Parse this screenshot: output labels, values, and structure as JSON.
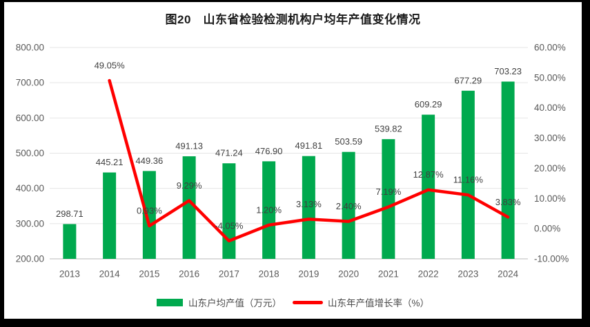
{
  "frame_color": "#000000",
  "colors": {
    "panel_background": "#FFFFFF",
    "bar": "#00A94E",
    "line": "#FF0000",
    "axis_text": "#595959",
    "data_label_text": "#3F3F3F",
    "gridline": "#E4E4E4",
    "axis_line": "#C8C8C8",
    "title_text": "#1A1A1A",
    "legend_text": "#4A4A4A"
  },
  "chart_data": {
    "type": "bar+line combo",
    "title": "图20　山东省检验检测机构户均年产值变化情况",
    "categories": [
      "2013",
      "2014",
      "2015",
      "2016",
      "2017",
      "2018",
      "2019",
      "2020",
      "2021",
      "2022",
      "2023",
      "2024"
    ],
    "series": [
      {
        "name": "山东户均产值（万元）",
        "type": "bar",
        "axis": "left",
        "values": [
          298.71,
          445.21,
          449.36,
          491.13,
          471.24,
          476.9,
          491.81,
          503.59,
          539.82,
          609.29,
          677.29,
          703.23
        ],
        "labels": [
          "298.71",
          "445.21",
          "449.36",
          "491.13",
          "471.24",
          "476.90",
          "491.81",
          "503.59",
          "539.82",
          "609.29",
          "677.29",
          "703.23"
        ]
      },
      {
        "name": "山东年产值增长率（%）",
        "type": "line",
        "axis": "right",
        "values": [
          null,
          49.05,
          0.93,
          9.29,
          -4.05,
          1.2,
          3.13,
          2.4,
          7.19,
          12.87,
          11.16,
          3.83
        ],
        "labels": [
          null,
          "49.05%",
          "0.93%",
          "9.29%",
          "-4.05%",
          "1.20%",
          "3.13%",
          "2.40%",
          "7.19%",
          "12.87%",
          "11.16%",
          "3.83%"
        ]
      }
    ],
    "left_axis": {
      "min": 200,
      "max": 800,
      "step": 100,
      "tick_labels": [
        "800.00",
        "700.00",
        "600.00",
        "500.00",
        "400.00",
        "300.00",
        "200.00"
      ]
    },
    "right_axis": {
      "min": -10,
      "max": 60,
      "step": 10,
      "tick_labels": [
        "60.00%",
        "50.00%",
        "40.00%",
        "30.00%",
        "20.00%",
        "10.00%",
        "0.00%",
        "-10.00%"
      ]
    },
    "grid": true,
    "legend_position": "bottom"
  }
}
